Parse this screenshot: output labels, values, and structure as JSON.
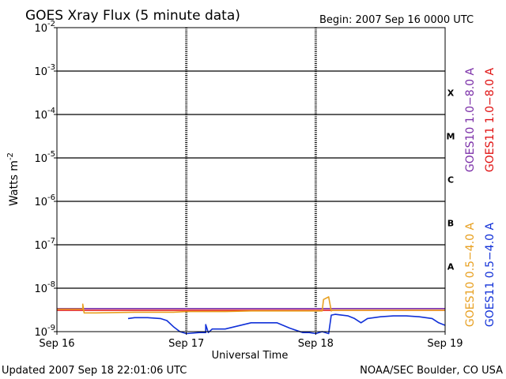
{
  "header": {
    "title": "GOES Xray Flux (5 minute data)",
    "begin": "Begin:  2007 Sep 16 0000 UTC"
  },
  "footer": {
    "updated": "Updated 2007 Sep 18 22:01:06 UTC",
    "credit": "NOAA/SEC Boulder, CO USA"
  },
  "chart_data": {
    "type": "line",
    "title": "GOES Xray Flux (5 minute data)",
    "xlabel": "Universal Time",
    "ylabel": "Watts m",
    "ylabel_sup": "-2",
    "yscale": "log",
    "ylim": [
      1e-09,
      0.01
    ],
    "xlim": [
      "2007-09-16T00:00Z",
      "2007-09-19T00:00Z"
    ],
    "x_ticks": [
      "Sep 16",
      "Sep 17",
      "Sep 18",
      "Sep 19"
    ],
    "y_ticks": [
      {
        "base": "10",
        "exp": "-2",
        "value": 0.01
      },
      {
        "base": "10",
        "exp": "-3",
        "value": 0.001
      },
      {
        "base": "10",
        "exp": "-4",
        "value": 0.0001
      },
      {
        "base": "10",
        "exp": "-5",
        "value": 1e-05
      },
      {
        "base": "10",
        "exp": "-6",
        "value": 1e-06
      },
      {
        "base": "10",
        "exp": "-7",
        "value": 1e-07
      },
      {
        "base": "10",
        "exp": "-8",
        "value": 1e-08
      },
      {
        "base": "10",
        "exp": "-9",
        "value": 1e-09
      }
    ],
    "flare_classes": [
      {
        "label": "X",
        "value": 0.000316
      },
      {
        "label": "M",
        "value": 3.16e-05
      },
      {
        "label": "C",
        "value": 3.16e-06
      },
      {
        "label": "B",
        "value": 3.16e-07
      },
      {
        "label": "A",
        "value": 3.16e-08
      }
    ],
    "legend": [
      {
        "name": "GOES10 1.0−8.0 A",
        "color": "#7b2fa8"
      },
      {
        "name": "GOES11 1.0−8.0 A",
        "color": "#e01010"
      },
      {
        "name": "GOES10 0.5−4.0 A",
        "color": "#e8a020"
      },
      {
        "name": "GOES11 0.5−4.0 A",
        "color": "#1030d8"
      }
    ],
    "grid": true,
    "series": [
      {
        "name": "GOES10 1.0−8.0 A",
        "color": "#7b2fa8",
        "x": [
          0.0,
          3.0
        ],
        "y": [
          3.4e-09,
          3.4e-09
        ]
      },
      {
        "name": "GOES11 1.0−8.0 A",
        "color": "#e01010",
        "x": [
          0.0,
          3.0
        ],
        "y": [
          3.1e-09,
          3.1e-09
        ]
      },
      {
        "name": "GOES10 0.5−4.0 A",
        "color": "#e8a020",
        "x": [
          0.0,
          0.2,
          0.2,
          0.21,
          0.3,
          0.6,
          0.9,
          1.0,
          1.3,
          1.5,
          1.8,
          2.0,
          2.05,
          2.06,
          2.1,
          2.12,
          2.13,
          2.3,
          2.6,
          2.8,
          3.0
        ],
        "y": [
          3.3e-09,
          3.3e-09,
          4.3e-09,
          2.7e-09,
          2.7e-09,
          2.8e-09,
          2.8e-09,
          2.9e-09,
          2.9e-09,
          3e-09,
          3e-09,
          3e-09,
          3e-09,
          5.5e-09,
          6.3e-09,
          3e-09,
          3.1e-09,
          3.1e-09,
          3.1e-09,
          3.1e-09,
          3.1e-09
        ]
      },
      {
        "name": "GOES11 0.5−4.0 A",
        "color": "#1030d8",
        "x": [
          0.55,
          0.6,
          0.7,
          0.8,
          0.85,
          0.9,
          0.95,
          1.0,
          1.1,
          1.15,
          1.15,
          1.17,
          1.2,
          1.3,
          1.5,
          1.7,
          1.8,
          1.9,
          1.95,
          2.0,
          2.05,
          2.1,
          2.12,
          2.15,
          2.2,
          2.25,
          2.3,
          2.35,
          2.4,
          2.5,
          2.6,
          2.7,
          2.8,
          2.9,
          2.95,
          3.0
        ],
        "y": [
          2e-09,
          2.1e-09,
          2.1e-09,
          2e-09,
          1.8e-09,
          1.3e-09,
          1e-09,
          9e-10,
          9.5e-10,
          9.5e-10,
          1.45e-09,
          9.5e-10,
          1.15e-09,
          1.15e-09,
          1.6e-09,
          1.6e-09,
          1.2e-09,
          9.5e-10,
          9.5e-10,
          9e-10,
          1e-09,
          9e-10,
          2.4e-09,
          2.5e-09,
          2.4e-09,
          2.3e-09,
          2e-09,
          1.6e-09,
          2e-09,
          2.2e-09,
          2.3e-09,
          2.3e-09,
          2.2e-09,
          2e-09,
          1.6e-09,
          1.4e-09
        ]
      }
    ]
  }
}
